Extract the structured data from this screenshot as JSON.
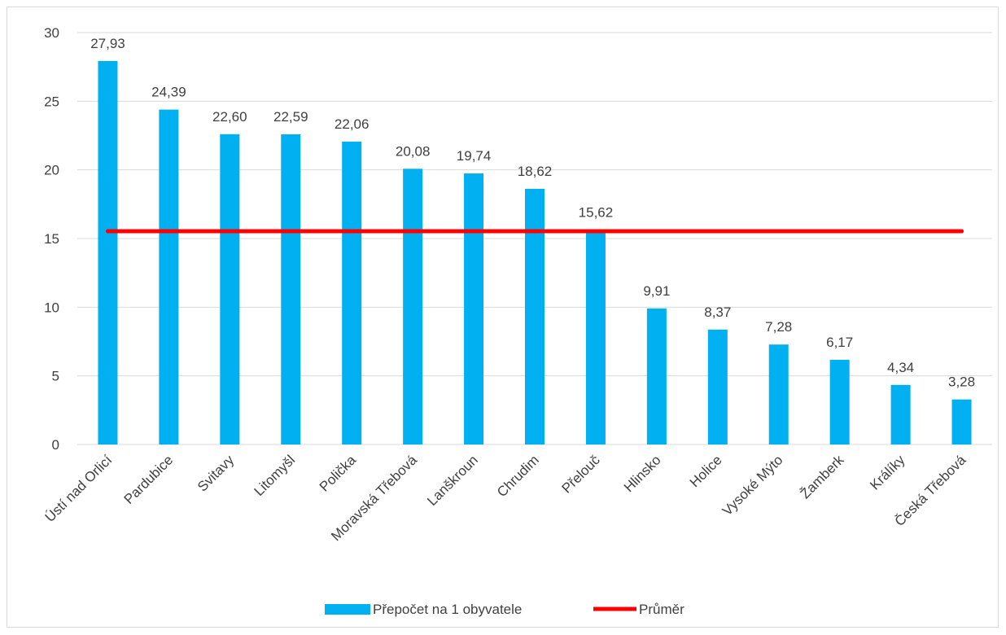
{
  "chart_data": {
    "type": "bar",
    "categories": [
      "Ústí nad Orlicí",
      "Pardubice",
      "Svitavy",
      "Litomyšl",
      "Polička",
      "Moravská Třebová",
      "Lanškroun",
      "Chrudim",
      "Přelouč",
      "Hlinsko",
      "Holice",
      "Vysoké Mýto",
      "Žamberk",
      "Králíky",
      "Česká Třebová"
    ],
    "series": [
      {
        "name": "Přepočet na 1 obyvatele",
        "type": "bar",
        "color": "#00b0f0",
        "values": [
          27.93,
          24.39,
          22.6,
          22.59,
          22.06,
          20.08,
          19.74,
          18.62,
          15.62,
          9.91,
          8.37,
          7.28,
          6.17,
          4.34,
          3.28
        ],
        "labels": [
          "27,93",
          "24,39",
          "22,60",
          "22,59",
          "22,06",
          "20,08",
          "19,74",
          "18,62",
          "15,62",
          "9,91",
          "8,37",
          "7,28",
          "6,17",
          "4,34",
          "3,28"
        ]
      },
      {
        "name": "Průměr",
        "type": "line",
        "color": "#ff0000",
        "values": [
          15.53,
          15.53,
          15.53,
          15.53,
          15.53,
          15.53,
          15.53,
          15.53,
          15.53,
          15.53,
          15.53,
          15.53,
          15.53,
          15.53,
          15.53
        ]
      }
    ],
    "ylim": [
      0,
      30
    ],
    "yticks": [
      "0",
      "5",
      "10",
      "15",
      "20",
      "25",
      "30"
    ],
    "ytick_values": [
      0,
      5,
      10,
      15,
      20,
      25,
      30
    ],
    "grid": true,
    "legend": "bottom",
    "gridline_color": "#d9d9d9"
  }
}
